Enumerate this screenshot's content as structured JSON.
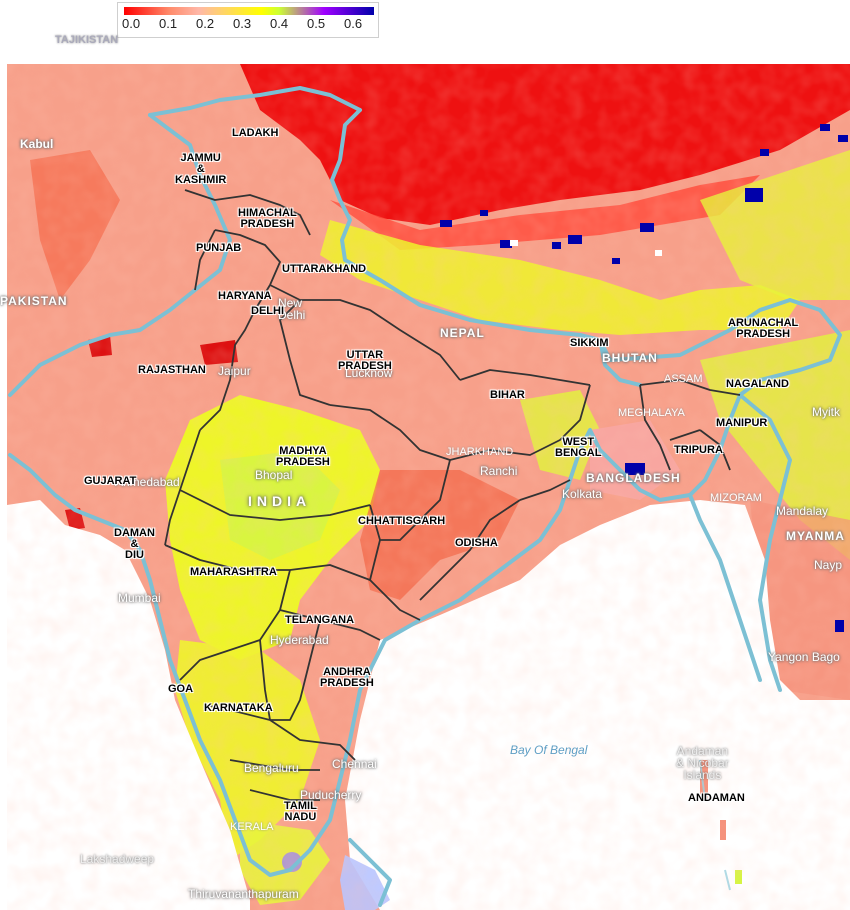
{
  "legend": {
    "ticks": [
      "0.0",
      "0.1",
      "0.2",
      "0.3",
      "0.4",
      "0.5",
      "0.6"
    ],
    "colors": [
      "#ff0000",
      "#ff8a6a",
      "#ffb8a8",
      "#ffff00",
      "#ccff33",
      "#a000ff",
      "#0000aa"
    ]
  },
  "colors": {
    "land_base": "#f7a08a",
    "high_red": "#ee1111",
    "yellow": "#eef529",
    "lime": "#d6f542",
    "water": "#ffffff",
    "coastline": "#7cc0d4",
    "state_border": "#333333"
  },
  "labels": {
    "states": {
      "ladakh": "LADAKH",
      "jammu_kashmir": "JAMMU\n&\nKASHMIR",
      "himachal": "HIMACHAL\nPRADESH",
      "punjab": "PUNJAB",
      "uttarakhand": "UTTARAKHAND",
      "haryana": "HARYANA",
      "delhi": "DELHI",
      "rajasthan": "RAJASTHAN",
      "uttar_pradesh": "UTTAR\nPRADESH",
      "sikkim": "SIKKIM",
      "arunachal": "ARUNACHAL\nPRADESH",
      "nagaland": "NAGALAND",
      "bihar": "BIHAR",
      "manipur": "MANIPUR",
      "madhya_pradesh": "MADHYA\nPRADESH",
      "west_bengal": "WEST\nBENGAL",
      "tripura": "TRIPURA",
      "gujarat": "GUJARAT",
      "chhattisgarh": "CHHATTISGARH",
      "daman_diu": "DAMAN\n&\nDIU",
      "odisha": "ODISHA",
      "maharashtra": "MAHARASHTRA",
      "telangana": "TELANGANA",
      "andhra_pradesh": "ANDHRA\nPRADESH",
      "goa": "GOA",
      "karnataka": "KARNATAKA",
      "tamil_nadu": "TAMIL\nNADU",
      "andaman": "ANDAMAN"
    },
    "countries": {
      "tajikistan": "TAJIKISTAN",
      "pakistan": "PAKISTAN",
      "nepal": "NEPAL",
      "bhutan": "BHUTAN",
      "bangladesh": "BANGLADESH",
      "india": "INDIA"
    },
    "cities": {
      "kabul": "Kabul",
      "new_delhi": "New\nDelhi",
      "jaipur": "Jaipur",
      "lucknow": "Lucknow",
      "bhopal": "Bhopal",
      "ranchi": "Ranchi",
      "kolkata": "Kolkata",
      "ahmedabad": "Ahmedabad",
      "mumbai": "Mumbai",
      "hyderabad": "Hyderabad",
      "bengaluru": "Bengaluru",
      "chennai": "Chennai",
      "puducherry": "Puducherry",
      "thiruvananthapuram": "Thiruvananthapuram",
      "mandalay": "Mandalay",
      "myitkyina": "Myitk",
      "naypyidaw": "Nayp",
      "yangon": "Yangon Bago"
    },
    "regions": {
      "myanmar": "MYANMA",
      "mizoram": "MIZORAM",
      "meghalaya": "MEGHALAYA",
      "assam": "ASSAM",
      "jharkhand": "JHARKHAND",
      "lakshadweep": "Lakshadweep",
      "andaman_islands": "Andaman\n& Nicobar\nIslands",
      "kerala": "KERALA"
    },
    "water": {
      "bay_of_bengal": "Bay Of Bengal"
    }
  }
}
